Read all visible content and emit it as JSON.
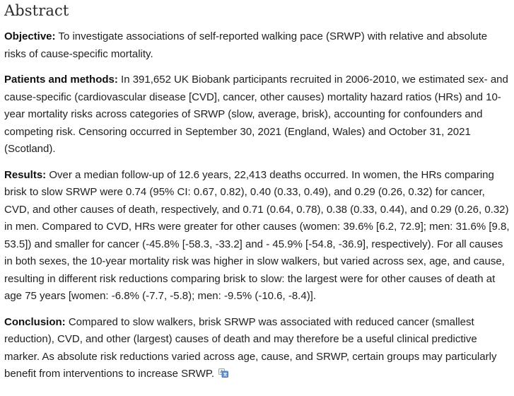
{
  "heading": "Abstract",
  "sections": {
    "objective": {
      "label": "Objective:",
      "text": "To investigate associations of self-reported walking pace (SRWP) with relative and absolute risks of cause-specific mortality."
    },
    "methods": {
      "label": "Patients and methods:",
      "text": "In 391,652 UK Biobank participants recruited in 2006-2010, we estimated sex- and cause-specific (cardiovascular disease [CVD], cancer, other causes) mortality hazard ratios (HRs) and 10-year mortality risks across categories of SRWP (slow, average, brisk), accounting for confounders and competing risk. Censoring occurred in September 30, 2021 (England, Wales) and October 31, 2021 (Scotland)."
    },
    "results": {
      "label": "Results:",
      "text": "Over a median follow-up of 12.6 years, 22,413 deaths occurred. In women, the HRs comparing brisk to slow SRWP were 0.74 (95% CI: 0.67, 0.82), 0.40 (0.33, 0.49), and 0.29 (0.26, 0.32) for cancer, CVD, and other causes of death, respectively, and 0.71 (0.64, 0.78), 0.38 (0.33, 0.44), and 0.29 (0.26, 0.32) in men. Compared to CVD, HRs were greater for other causes (women: 39.6% [6.2, 72.9]; men: 31.6% [9.8, 53.5]) and smaller for cancer (-45.8% [-58.3, -33.2] and - 45.9% [-54.8, -36.9], respectively). For all causes in both sexes, the 10-year mortality risk was higher in slow walkers, but varied across sex, age, and cause, resulting in different risk reductions comparing brisk to slow: the largest were for other causes of death at age 75 years [women: -6.8% (-7.7, -5.8); men: -9.5% (-10.6, -8.4)]."
    },
    "conclusion": {
      "label": "Conclusion:",
      "text": "Compared to slow walkers, brisk SRWP was associated with reduced cancer (smallest reduction), CVD, and other (largest) causes of death and may therefore be a useful clinical predictive marker. As absolute risk reductions varied across age, cause, and SRWP, certain groups may particularly benefit from interventions to increase SRWP."
    }
  },
  "icons": {
    "trailing": "translate-icon"
  },
  "colors": {
    "icon_blue": "#5b8fd6",
    "icon_gray": "#9aa3ad"
  }
}
